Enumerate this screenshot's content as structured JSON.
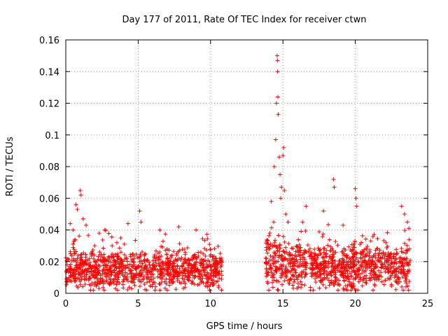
{
  "chart_data": {
    "type": "scatter",
    "title": "Day 177 of 2011, Rate Of TEC Index for receiver ctwn",
    "xlabel": "GPS time / hours",
    "ylabel": "ROTI / TECUs",
    "xlim": [
      0,
      25
    ],
    "ylim": [
      0,
      0.16
    ],
    "xticks": [
      0,
      5,
      10,
      15,
      20,
      25
    ],
    "xtick_labels": [
      "0",
      "5",
      "10",
      "15",
      "20",
      "25"
    ],
    "yticks": [
      0,
      0.02,
      0.04,
      0.06,
      0.08,
      0.1,
      0.12,
      0.14,
      0.16
    ],
    "ytick_labels": [
      "0",
      "0.02",
      "0.04",
      "0.06",
      "0.08",
      "0.1",
      "0.12",
      "0.14",
      "0.16"
    ],
    "grid": true,
    "marker": "+",
    "series": [
      {
        "name": "ROTI",
        "color": "#ff0000",
        "segments": [
          {
            "x_start": 0.0,
            "x_end": 10.8,
            "typical": 0.015,
            "spread": 0.012
          },
          {
            "x_start": 13.8,
            "x_end": 16.2,
            "typical": 0.018,
            "spread": 0.016
          },
          {
            "x_start": 16.2,
            "x_end": 23.8,
            "typical": 0.017,
            "spread": 0.014
          }
        ],
        "points": [
          {
            "x": 0.3,
            "y": 0.044
          },
          {
            "x": 0.5,
            "y": 0.04
          },
          {
            "x": 0.7,
            "y": 0.056
          },
          {
            "x": 0.8,
            "y": 0.053
          },
          {
            "x": 1.0,
            "y": 0.065
          },
          {
            "x": 1.05,
            "y": 0.062
          },
          {
            "x": 1.2,
            "y": 0.047
          },
          {
            "x": 1.4,
            "y": 0.043
          },
          {
            "x": 2.0,
            "y": 0.03
          },
          {
            "x": 2.7,
            "y": 0.04
          },
          {
            "x": 3.2,
            "y": 0.03
          },
          {
            "x": 3.8,
            "y": 0.035
          },
          {
            "x": 4.3,
            "y": 0.044
          },
          {
            "x": 5.1,
            "y": 0.052
          },
          {
            "x": 5.2,
            "y": 0.045
          },
          {
            "x": 6.5,
            "y": 0.04
          },
          {
            "x": 7.8,
            "y": 0.042
          },
          {
            "x": 9.0,
            "y": 0.04
          },
          {
            "x": 13.9,
            "y": 0.033
          },
          {
            "x": 14.1,
            "y": 0.038
          },
          {
            "x": 14.2,
            "y": 0.058
          },
          {
            "x": 14.4,
            "y": 0.08
          },
          {
            "x": 14.5,
            "y": 0.097
          },
          {
            "x": 14.55,
            "y": 0.12
          },
          {
            "x": 14.6,
            "y": 0.15
          },
          {
            "x": 14.62,
            "y": 0.147
          },
          {
            "x": 14.63,
            "y": 0.14
          },
          {
            "x": 14.65,
            "y": 0.124
          },
          {
            "x": 14.68,
            "y": 0.113
          },
          {
            "x": 14.75,
            "y": 0.086
          },
          {
            "x": 14.8,
            "y": 0.075
          },
          {
            "x": 14.9,
            "y": 0.067
          },
          {
            "x": 15.0,
            "y": 0.087
          },
          {
            "x": 15.05,
            "y": 0.092
          },
          {
            "x": 15.1,
            "y": 0.065
          },
          {
            "x": 14.85,
            "y": 0.06
          },
          {
            "x": 15.2,
            "y": 0.05
          },
          {
            "x": 16.6,
            "y": 0.055
          },
          {
            "x": 17.8,
            "y": 0.052
          },
          {
            "x": 18.5,
            "y": 0.072
          },
          {
            "x": 18.55,
            "y": 0.067
          },
          {
            "x": 20.0,
            "y": 0.066
          },
          {
            "x": 20.05,
            "y": 0.06
          },
          {
            "x": 20.1,
            "y": 0.055
          },
          {
            "x": 23.2,
            "y": 0.055
          },
          {
            "x": 23.4,
            "y": 0.05
          },
          {
            "x": 23.6,
            "y": 0.045
          },
          {
            "x": 23.7,
            "y": 0.041
          }
        ]
      }
    ]
  }
}
